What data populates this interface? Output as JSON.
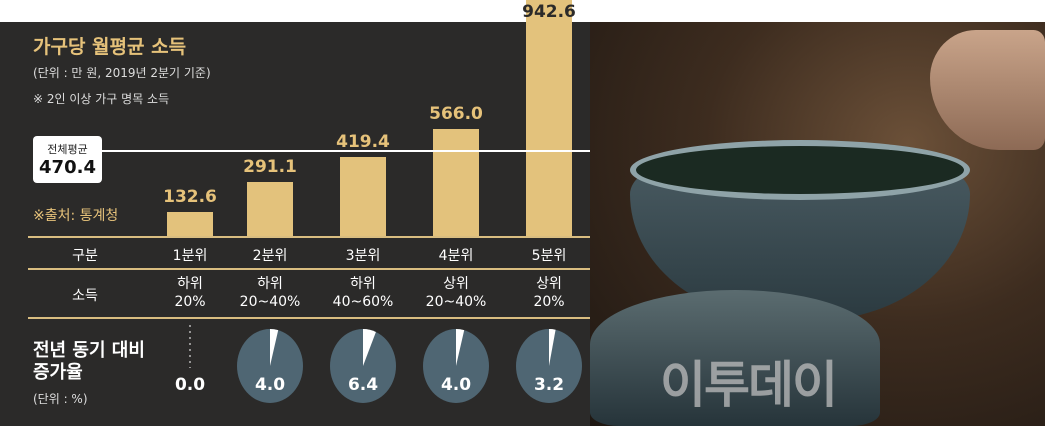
{
  "title": "가구당 월평균 소득",
  "unit_note": "(단위 : 만 원, 2019년 2분기 기준)",
  "note": "※ 2인 이상 가구 명목 소득",
  "source": "※출처: 통계청",
  "average": {
    "label": "전체평균",
    "value": "470.4"
  },
  "row_labels": {
    "group": "구분",
    "income": "소득",
    "growth": [
      "전년 동기 대비",
      "증가율"
    ],
    "growth_unit": "(단위 : %)"
  },
  "watermark": "이투데이",
  "colors": {
    "bar": "#e3c27c",
    "background": "#2b2a29",
    "pie": "#4f6673"
  },
  "chart_data": {
    "type": "bar",
    "categories": [
      "1분위",
      "2분위",
      "3분위",
      "4분위",
      "5분위"
    ],
    "income_groups": [
      [
        "하위",
        "20%"
      ],
      [
        "하위",
        "20~40%"
      ],
      [
        "하위",
        "40~60%"
      ],
      [
        "상위",
        "20~40%"
      ],
      [
        "상위",
        "20%"
      ]
    ],
    "values": [
      132.6,
      291.1,
      419.4,
      566.0,
      942.6
    ],
    "value_labels": [
      "132.6",
      "291.1",
      "419.4",
      "566.0",
      "942.6"
    ],
    "average": 470.4,
    "growth": [
      0.0,
      4.0,
      6.4,
      4.0,
      3.2
    ],
    "growth_labels": [
      "0.0",
      "4.0",
      "6.4",
      "4.0",
      "3.2"
    ]
  }
}
